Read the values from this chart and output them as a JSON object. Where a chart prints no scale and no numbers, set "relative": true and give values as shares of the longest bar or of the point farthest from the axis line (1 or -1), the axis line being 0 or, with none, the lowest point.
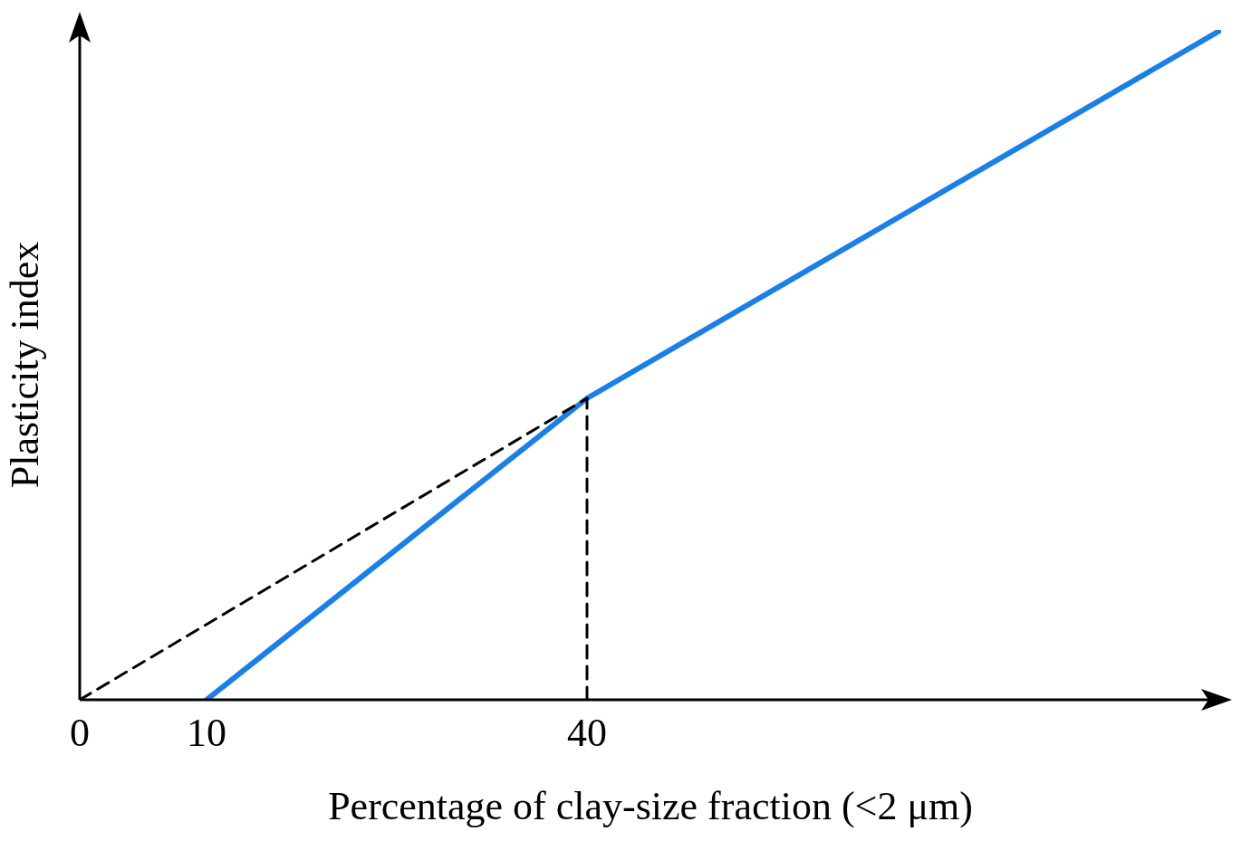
{
  "chart_data": {
    "type": "line",
    "relative": true,
    "xlabel": "Percentage of clay-size fraction (<2 μm)",
    "ylabel": "Plasticity index",
    "xlim": [
      0,
      90
    ],
    "xticks": [
      0,
      10,
      40
    ],
    "marker": "none",
    "series": [
      {
        "color": "#1a7fe6",
        "x": [
          10,
          40,
          90
        ],
        "values": [
          0,
          0.45,
          1
        ],
        "line_style": "solid"
      },
      {
        "color": "#000000",
        "x": [
          0,
          40
        ],
        "values": [
          0,
          0.45
        ],
        "line_style": "dashed"
      },
      {
        "color": "#000000",
        "x": [
          40,
          40
        ],
        "values": [
          0,
          0.45
        ],
        "line_style": "dashed"
      }
    ]
  }
}
